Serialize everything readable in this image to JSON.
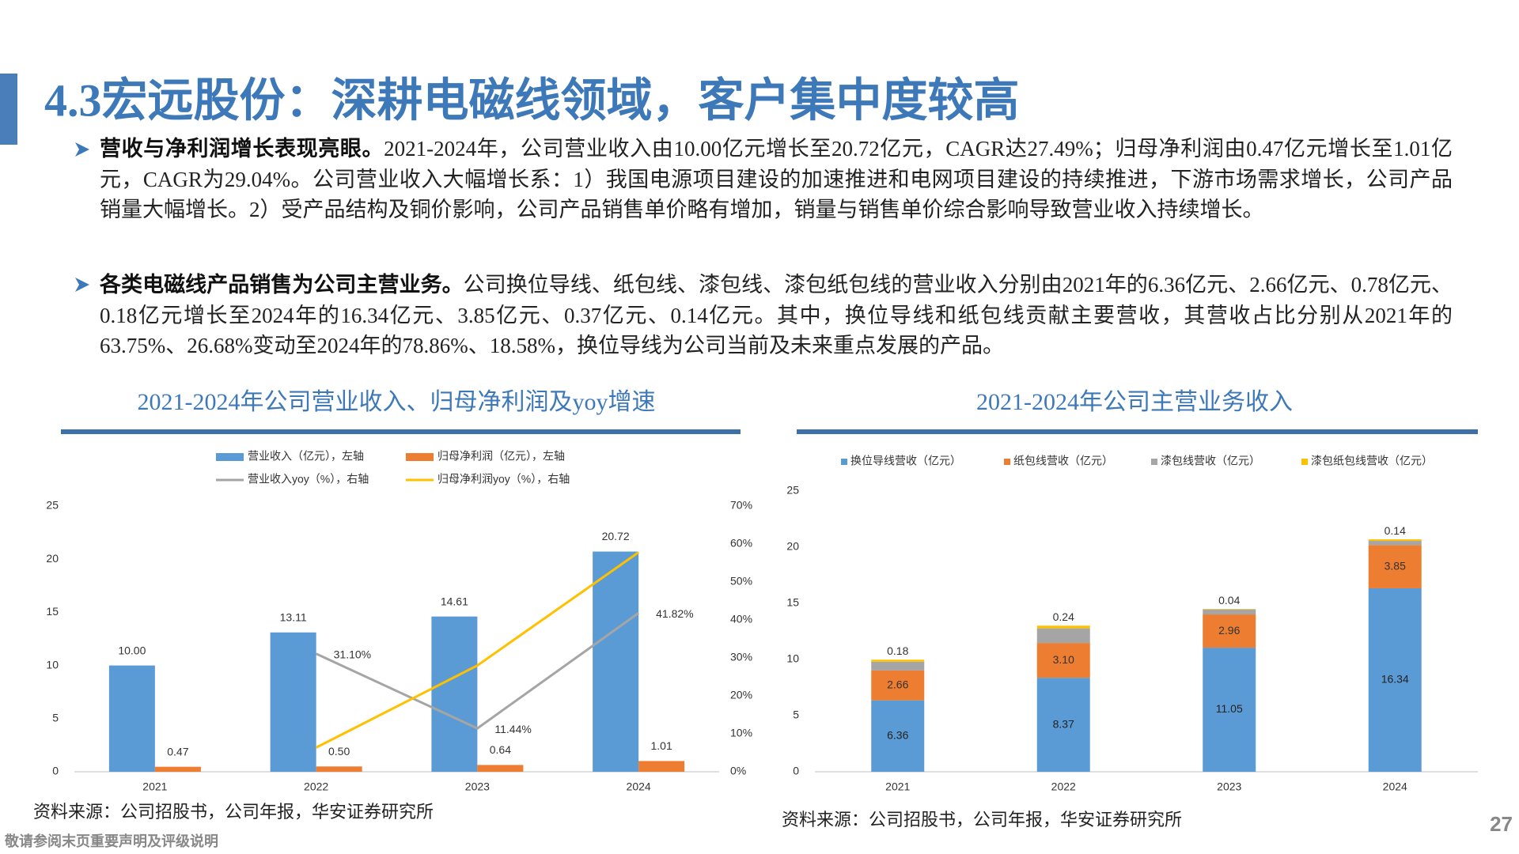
{
  "header": {
    "title": "4.3宏远股份：深耕电磁线领域，客户集中度较高"
  },
  "bullets": [
    {
      "bold": "营收与净利润增长表现亮眼。",
      "text": "2021-2024年，公司营业收入由10.00亿元增长至20.72亿元，CAGR达27.49%；归母净利润由0.47亿元增长至1.01亿元，CAGR为29.04%。公司营业收入大幅增长系：1）我国电源项目建设的加速推进和电网项目建设的持续推进，下游市场需求增长，公司产品销量大幅增长。2）受产品结构及铜价影响，公司产品销售单价略有增加，销量与销售单价综合影响导致营业收入持续增长。"
    },
    {
      "bold": "各类电磁线产品销售为公司主营业务。",
      "text": "公司换位导线、纸包线、漆包线、漆包纸包线的营业收入分别由2021年的6.36亿元、2.66亿元、0.78亿元、0.18亿元增长至2024年的16.34亿元、3.85亿元、0.37亿元、0.14亿元。其中，换位导线和纸包线贡献主要营收，其营收占比分别从2021年的63.75%、26.68%变动至2024年的78.86%、18.58%，换位导线为公司当前及未来重点发展的产品。"
    }
  ],
  "chart_data": [
    {
      "type": "combo",
      "title": "2021-2024年公司营业收入、归母净利润及yoy增速",
      "categories": [
        "2021",
        "2022",
        "2023",
        "2024"
      ],
      "series": [
        {
          "name": "营业收入（亿元），左轴",
          "mark": "bar",
          "color": "#5b9bd5",
          "values": [
            10.0,
            13.11,
            14.61,
            20.72
          ],
          "value_labels": [
            "10.00",
            "13.11",
            "14.61",
            "20.72"
          ]
        },
        {
          "name": "归母净利润（亿元），左轴",
          "mark": "bar",
          "color": "#ed7d31",
          "values": [
            0.47,
            0.5,
            0.64,
            1.01
          ],
          "value_labels": [
            "0.47",
            "0.50",
            "0.64",
            "1.01"
          ]
        },
        {
          "name": "营业收入yoy（%），右轴",
          "mark": "line",
          "axis": "y2",
          "color": "#a5a5a5",
          "values": [
            null,
            31.1,
            11.44,
            41.82
          ],
          "value_labels": [
            null,
            "31.10%",
            "11.44%",
            "41.82%"
          ]
        },
        {
          "name": "归母净利润yoy（%），右轴",
          "mark": "line",
          "axis": "y2",
          "color": "#ffc000",
          "values": [
            null,
            6.38,
            28.0,
            57.81
          ]
        }
      ],
      "ylim": [
        0,
        25
      ],
      "yticks": [
        0,
        5,
        10,
        15,
        20,
        25
      ],
      "y2lim": [
        0,
        70
      ],
      "y2ticks": [
        {
          "value": 0,
          "label": "0%"
        },
        {
          "value": 10,
          "label": "10%"
        },
        {
          "value": 20,
          "label": "20%"
        },
        {
          "value": 30,
          "label": "30%"
        },
        {
          "value": 40,
          "label": "40%"
        },
        {
          "value": 50,
          "label": "50%"
        },
        {
          "value": 60,
          "label": "60%"
        },
        {
          "value": 70,
          "label": "70%"
        }
      ],
      "legend": "top",
      "grid": false
    },
    {
      "type": "stacked_bar",
      "title": "2021-2024年公司主营业务收入",
      "categories": [
        "2021",
        "2022",
        "2023",
        "2024"
      ],
      "series": [
        {
          "name": "换位导线营收（亿元）",
          "color": "#5b9bd5",
          "values": [
            6.36,
            8.37,
            11.05,
            16.34
          ]
        },
        {
          "name": "纸包线营收（亿元）",
          "color": "#ed7d31",
          "values": [
            2.66,
            3.1,
            2.96,
            3.85
          ],
          "value_labels": [
            "2.66",
            "3.10",
            "2.96",
            "3.85"
          ]
        },
        {
          "name": "漆包线营收（亿元）",
          "color": "#a5a5a5",
          "values": [
            0.78,
            1.3,
            0.45,
            0.37
          ]
        },
        {
          "name": "漆包纸包线营收（亿元）",
          "color": "#ffc000",
          "values": [
            0.18,
            0.24,
            0.04,
            0.14
          ]
        }
      ],
      "ylim": [
        0,
        25
      ],
      "yticks": [
        0,
        5,
        10,
        15,
        20,
        25
      ],
      "legend": "top",
      "grid": false
    }
  ],
  "sources": [
    "资料来源：公司招股书，公司年报，华安证券研究所",
    "资料来源：公司招股书，公司年报，华安证券研究所"
  ],
  "footer": "敬请参阅末页重要声明及评级说明",
  "page_number": "27"
}
